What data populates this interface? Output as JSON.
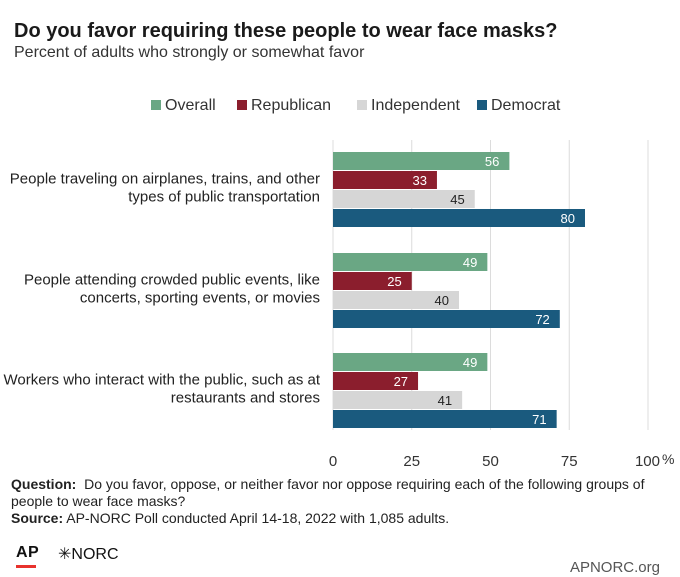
{
  "chart_data": {
    "type": "bar",
    "orientation": "horizontal",
    "title": "Do you favor requiring these people to wear face masks?",
    "subtitle": "Percent of adults who strongly or somewhat favor",
    "categories": [
      [
        "People traveling on airplanes, trains, and other",
        "types of public transportation"
      ],
      [
        "People attending crowded public events, like",
        "concerts, sporting events, or movies"
      ],
      [
        "Workers who interact with the public, such as at",
        "restaurants and stores"
      ]
    ],
    "series": [
      {
        "name": "Overall",
        "color": "#6aa784",
        "label_color": "#ffffff",
        "values": [
          56,
          49,
          49
        ]
      },
      {
        "name": "Republican",
        "color": "#8b1e2d",
        "label_color": "#ffffff",
        "values": [
          33,
          25,
          27
        ]
      },
      {
        "name": "Independent",
        "color": "#d6d6d6",
        "label_color": "#222222",
        "values": [
          45,
          40,
          41
        ]
      },
      {
        "name": "Democrat",
        "color": "#1a5a7e",
        "label_color": "#ffffff",
        "values": [
          80,
          72,
          71
        ]
      }
    ],
    "xlim": [
      0,
      100
    ],
    "xticks": [
      "0",
      "25",
      "50",
      "75",
      "100"
    ],
    "x_unit": "%",
    "grid": true,
    "legend_position": "top"
  },
  "notes": {
    "question_label": "Question:",
    "question_text": "Do you favor, oppose, or neither favor nor oppose requiring each of the following groups of people to wear face masks?",
    "source_label": "Source:",
    "source_text": "AP-NORC Poll conducted April 14-18, 2022 with 1,085 adults."
  },
  "footer": {
    "ap_logo": "AP",
    "norc_logo": "✳NORC",
    "url": "APNORC.org"
  }
}
